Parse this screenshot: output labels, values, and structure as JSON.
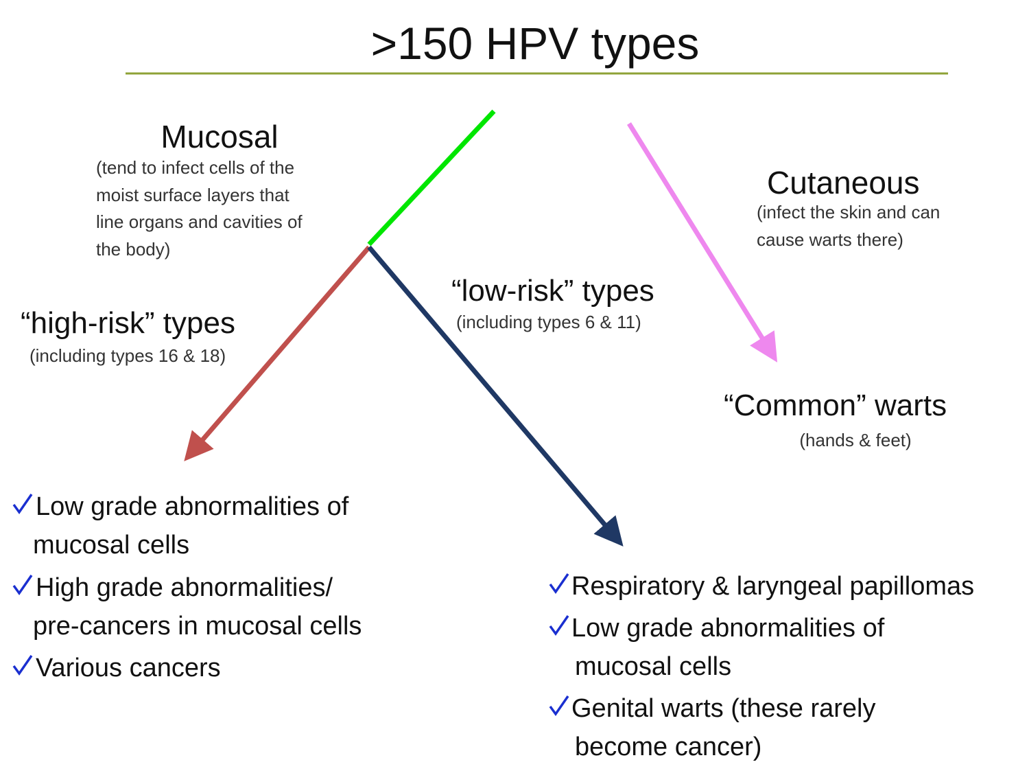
{
  "title": ">150 HPV types",
  "mucosal": {
    "label": "Mucosal",
    "description": [
      "(tend to infect cells of the",
      "moist surface layers that",
      "line organs and cavities of",
      "the body)"
    ]
  },
  "cutaneous": {
    "label": "Cutaneous",
    "description": [
      "(infect the skin and can",
      "cause warts there)"
    ]
  },
  "high_risk": {
    "label": "“high-risk” types",
    "note": "(including types 16 & 18)",
    "items": [
      [
        "Low grade abnormalities of",
        "mucosal cells"
      ],
      [
        "High grade abnormalities/",
        "pre-cancers in mucosal cells"
      ],
      [
        "Various cancers"
      ]
    ]
  },
  "low_risk": {
    "label": "“low-risk” types",
    "note": "(including types 6 & 11)",
    "items": [
      [
        "Respiratory & laryngeal papillomas"
      ],
      [
        "Low grade abnormalities of",
        "mucosal cells"
      ],
      [
        "Genital warts (these rarely",
        "become cancer)"
      ]
    ]
  },
  "common_warts": {
    "label": "“Common” warts",
    "note": "(hands & feet)"
  }
}
